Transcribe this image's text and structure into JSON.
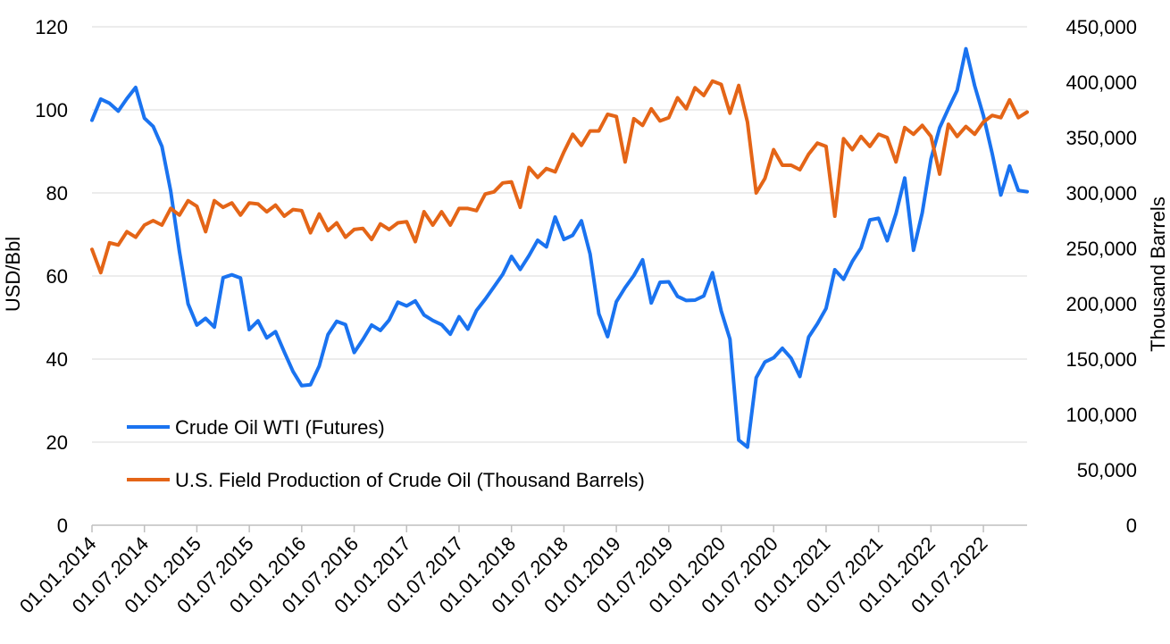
{
  "chart_data": {
    "type": "line",
    "ylabel_left": "USD/Bbl",
    "ylabel_right": "Thousand Barrels",
    "ylim_left": [
      0,
      120
    ],
    "ylim_right": [
      0,
      450000
    ],
    "yticks_left": [
      "0",
      "20",
      "40",
      "60",
      "80",
      "100",
      "120"
    ],
    "yticks_right": [
      "0",
      "50,000",
      "100,000",
      "150,000",
      "200,000",
      "250,000",
      "300,000",
      "350,000",
      "400,000",
      "450,000"
    ],
    "x_tick_labels": [
      "01.01.2014",
      "01.07.2014",
      "01.01.2015",
      "01.07.2015",
      "01.01.2016",
      "01.07.2016",
      "01.01.2017",
      "01.07.2017",
      "01.01.2018",
      "01.07.2018",
      "01.01.2019",
      "01.07.2019",
      "01.01.2020",
      "01.07.2020",
      "01.01.2021",
      "01.07.2021",
      "01.01.2022",
      "01.07.2022"
    ],
    "x_start": "2014-01",
    "x_end": "2022-12",
    "grid": "horizontal",
    "legend_position": "lower-left",
    "series": [
      {
        "name": "Crude Oil WTI (Futures)",
        "axis": "left",
        "color": "#1a73f0",
        "values": [
          97.5,
          102.6,
          101.6,
          99.7,
          102.7,
          105.4,
          98.0,
          96.0,
          91.2,
          80.5,
          65.9,
          53.3,
          48.2,
          49.8,
          47.7,
          59.6,
          60.3,
          59.5,
          47.1,
          49.2,
          45.1,
          46.6,
          41.7,
          37.0,
          33.6,
          33.8,
          38.3,
          45.9,
          49.1,
          48.3,
          41.6,
          44.7,
          48.2,
          46.9,
          49.4,
          53.7,
          52.8,
          54.0,
          50.6,
          49.3,
          48.3,
          46.0,
          50.2,
          47.2,
          51.7,
          54.4,
          57.4,
          60.4,
          64.7,
          61.6,
          64.9,
          68.6,
          67.0,
          74.2,
          68.8,
          69.8,
          73.3,
          65.3,
          50.9,
          45.4,
          53.8,
          57.2,
          60.1,
          63.9,
          53.5,
          58.5,
          58.6,
          55.1,
          54.1,
          54.2,
          55.2,
          60.8,
          51.6,
          44.8,
          20.5,
          18.8,
          35.5,
          39.3,
          40.3,
          42.6,
          40.2,
          35.8,
          45.3,
          48.5,
          52.2,
          61.5,
          59.2,
          63.5,
          66.8,
          73.5,
          73.9,
          68.5,
          75.0,
          83.6,
          66.2,
          75.2,
          88.2,
          95.7,
          100.3,
          104.7,
          114.7,
          105.8,
          98.6,
          89.5,
          79.5,
          86.5,
          80.6,
          80.3
        ]
      },
      {
        "name": "U.S. Field Production of Crude Oil (Thousand Barrels)",
        "axis": "right",
        "color": "#e46517",
        "values": [
          249000,
          228000,
          255000,
          253000,
          265000,
          260000,
          271000,
          275000,
          271000,
          286000,
          280000,
          293000,
          288000,
          265000,
          293000,
          287000,
          291000,
          280000,
          291000,
          290000,
          283000,
          289000,
          279000,
          285000,
          284000,
          264000,
          281000,
          266000,
          273000,
          260000,
          267000,
          268000,
          258000,
          272000,
          267000,
          273000,
          274000,
          256000,
          283000,
          271000,
          283000,
          271000,
          286000,
          286000,
          284000,
          299000,
          301000,
          309000,
          310000,
          287000,
          323000,
          314000,
          322000,
          319000,
          337000,
          353000,
          343000,
          356000,
          356000,
          371000,
          369000,
          328000,
          367000,
          361000,
          376000,
          365000,
          368000,
          386000,
          376000,
          395000,
          388000,
          401000,
          398000,
          372000,
          397000,
          364000,
          300000,
          313000,
          339000,
          325000,
          325000,
          321000,
          335000,
          345000,
          342000,
          279000,
          349000,
          339000,
          351000,
          342000,
          353000,
          350000,
          328000,
          359000,
          353000,
          361000,
          351000,
          317000,
          362000,
          351000,
          360000,
          353000,
          364000,
          370000,
          368000,
          384000,
          368000,
          373000
        ]
      }
    ]
  }
}
